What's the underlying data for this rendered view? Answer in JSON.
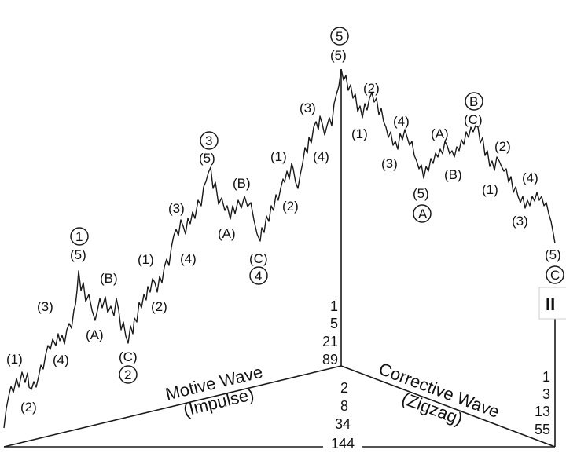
{
  "motive_title": "Motive Wave",
  "motive_sub": "(Impulse)",
  "corrective_title": "Corrective Wave",
  "corrective_sub": "(Zigzag)",
  "break_mark": "II",
  "fib_up": [
    "1",
    "5",
    "21",
    "89"
  ],
  "fib_down": [
    "2",
    "8",
    "34",
    "144"
  ],
  "fib_right": [
    "1",
    "3",
    "13",
    "55"
  ],
  "labels": {
    "w1": "(1)",
    "w2": "(2)",
    "w3": "(3)",
    "w4": "(4)",
    "c1_5": "(5)",
    "c1_num": "1",
    "a_B": "(B)",
    "a_A": "(A)",
    "a_C": "(C)",
    "c2_num": "2",
    "w3_1": "(1)",
    "w3_2": "(2)",
    "w3_3": "(3)",
    "w3_4": "(4)",
    "c3_5": "(5)",
    "c3_num": "3",
    "b_B": "(B)",
    "b_A": "(A)",
    "b_C": "(C)",
    "c4_num": "4",
    "w5_1": "(1)",
    "w5_2": "(2)",
    "w5_3": "(3)",
    "w5_4": "(4)",
    "c5_5": "(5)",
    "c5_num": "5",
    "d_1": "(1)",
    "d_2": "(2)",
    "d_3": "(3)",
    "d_4": "(4)",
    "cA_5": "(5)",
    "cA_letter": "A",
    "e_A": "(A)",
    "e_B": "(B)",
    "cB_C": "(C)",
    "cB_letter": "B",
    "f_1": "(1)",
    "f_2": "(2)",
    "f_3": "(3)",
    "f_4": "(4)",
    "cC_5": "(5)",
    "cC_letter": "C"
  }
}
